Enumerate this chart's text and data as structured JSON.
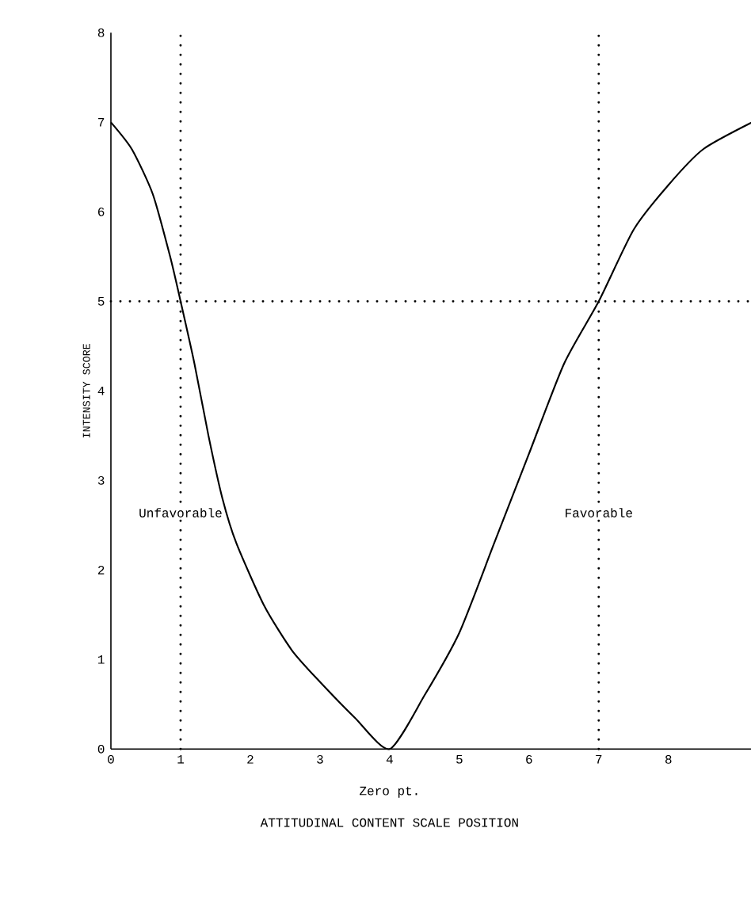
{
  "chart_data": {
    "type": "line",
    "ylabel": "INTENSITY SCORE",
    "xlim": [
      0,
      9.2
    ],
    "ylim": [
      0,
      8
    ],
    "xticks": [
      0,
      1,
      2,
      3,
      4,
      5,
      6,
      7,
      8
    ],
    "yticks": [
      0,
      1,
      2,
      3,
      4,
      5,
      6,
      7,
      8
    ],
    "series": [
      {
        "color": "#000000",
        "x": [
          0,
          0.3,
          0.6,
          0.85,
          1,
          1.2,
          1.4,
          1.6,
          1.8,
          2.2,
          2.6,
          3,
          3.5,
          4,
          4.5,
          5,
          5.5,
          6,
          6.5,
          7,
          7.5,
          8,
          8.5,
          9.2
        ],
        "values": [
          7,
          6.7,
          6.2,
          5.5,
          5,
          4.3,
          3.5,
          2.8,
          2.3,
          1.6,
          1.1,
          0.75,
          0.35,
          0,
          0.6,
          1.3,
          2.3,
          3.3,
          4.3,
          5,
          5.8,
          6.3,
          6.7,
          7.0
        ]
      }
    ],
    "ref_lines": [
      {
        "axis": "y",
        "value": 5,
        "line_style": "dotted"
      },
      {
        "axis": "x",
        "value": 1,
        "label": "Unfavorable",
        "line_style": "dotted"
      },
      {
        "axis": "x",
        "value": 7,
        "label": "Favorable",
        "line_style": "dotted"
      }
    ],
    "annotations": [
      {
        "text": "Zero pt.",
        "x": 4,
        "y": 0
      },
      "ATTITUDINAL CONTENT SCALE POSITION"
    ]
  }
}
